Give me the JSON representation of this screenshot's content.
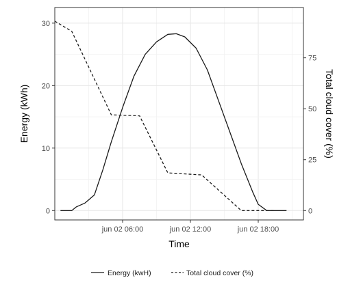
{
  "chart_data": {
    "type": "line",
    "xlabel": "Time",
    "ylabel": "Energy (kWh)",
    "ylabel_right": "Total cloud cover (%)",
    "x_tick_labels": [
      "jun 02 06:00",
      "jun 02 12:00",
      "jun 02 18:00"
    ],
    "x_ticks": [
      "06:00",
      "12:00",
      "18:00"
    ],
    "xlim": [
      "00:00",
      "22:00"
    ],
    "ylim": [
      -1.5,
      32.5
    ],
    "y_ticks": [
      0,
      10,
      20,
      30
    ],
    "y2lim": [
      -4.6,
      99.7
    ],
    "y2_ticks": [
      0,
      25,
      50,
      75
    ],
    "grid": true,
    "legend_position": "bottom",
    "series": [
      {
        "name": "Energy (kwH)",
        "linetype": "solid",
        "axis": "left",
        "color": "#1a1a1a",
        "points": [
          [
            "00:30",
            0
          ],
          [
            "01:30",
            0
          ],
          [
            "01:55",
            0.6
          ],
          [
            "02:40",
            1.2
          ],
          [
            "03:30",
            2.5
          ],
          [
            "04:15",
            6.5
          ],
          [
            "05:00",
            11.0
          ],
          [
            "06:00",
            16.5
          ],
          [
            "07:00",
            21.5
          ],
          [
            "08:00",
            25.0
          ],
          [
            "09:00",
            27.0
          ],
          [
            "10:00",
            28.2
          ],
          [
            "10:45",
            28.3
          ],
          [
            "11:30",
            27.8
          ],
          [
            "12:30",
            26.0
          ],
          [
            "13:30",
            22.5
          ],
          [
            "14:30",
            17.5
          ],
          [
            "15:30",
            12.5
          ],
          [
            "16:30",
            7.5
          ],
          [
            "17:30",
            3.0
          ],
          [
            "18:00",
            1.0
          ],
          [
            "18:45",
            0
          ],
          [
            "20:30",
            0
          ]
        ]
      },
      {
        "name": "Total cloud cover (%)",
        "linetype": "dashed",
        "axis": "right",
        "color": "#1a1a1a",
        "points": [
          [
            "00:00",
            93
          ],
          [
            "01:30",
            88
          ],
          [
            "05:00",
            47
          ],
          [
            "07:30",
            46.5
          ],
          [
            "10:00",
            18.5
          ],
          [
            "13:00",
            17.5
          ],
          [
            "16:30",
            0
          ],
          [
            "18:00",
            0
          ],
          [
            "19:30",
            0
          ]
        ]
      }
    ]
  }
}
